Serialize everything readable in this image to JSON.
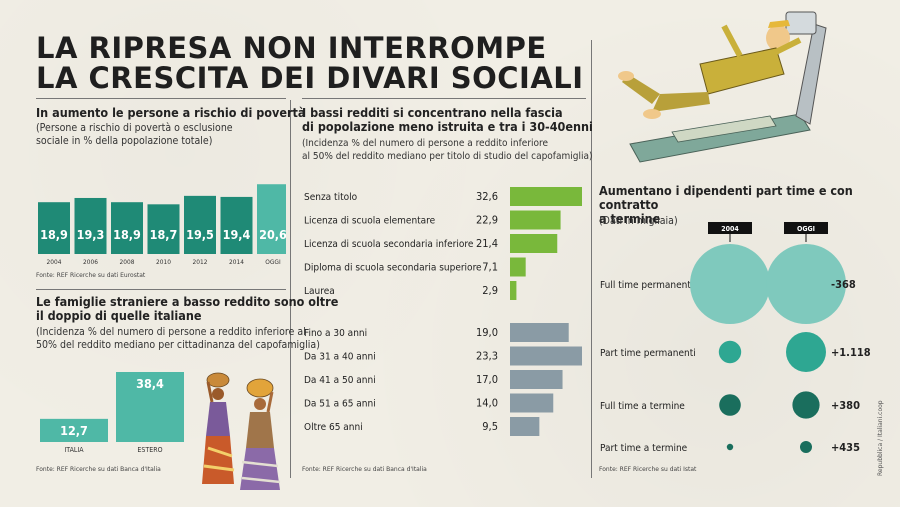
{
  "title": [
    "LA RIPRESA NON INTERROMPE",
    "LA CRESCITA DEI DIVARI SOCIALI"
  ],
  "poverty": {
    "title": "In aumento le persone a rischio di povertà",
    "subtitle": [
      "(Persone a rischio di povertà o esclusione",
      "sociale in % della popolazione totale)"
    ],
    "source": "Fonte: REF Ricerche su dati Eurostat"
  },
  "foreign": {
    "title": [
      "Le famiglie straniere a basso reddito sono oltre",
      "il doppio di quelle italiane"
    ],
    "subtitle": [
      "(Incidenza % del numero di persone a reddito inferiore al",
      "50% del reddito mediano per cittadinanza del capofamiglia)"
    ],
    "source": "Fonte: REF Ricerche su dati Banca d'Italia"
  },
  "lowincome": {
    "title": [
      "I bassi redditi si concentrano nella fascia",
      "di popolazione meno istruita e tra i 30-40enni"
    ],
    "subtitle": [
      "(Incidenza % del numero di persone a reddito inferiore",
      "al 50% del reddito mediano per titolo di studio del capofamiglia)"
    ],
    "source": "Fonte: REF Ricerche su dati Banca d'Italia"
  },
  "parttime": {
    "title": [
      "Aumentano i dipendenti part time e con contratto",
      "a termine"
    ],
    "subtitle": "(Dati in migliaia)",
    "source": "Fonte: REF Ricerche su dati Istat"
  },
  "credit": "Repubblica / Italiani.coop",
  "colors": {
    "teal_dark": "#1f8a76",
    "teal_light": "#4fb8a6",
    "green": "#79b83b",
    "grey_blue": "#8a9ba5",
    "bubble_light": "#7fc9bd",
    "bubble_mid": "#2ea792",
    "bubble_dark": "#1a6e5d"
  },
  "chart_data": [
    {
      "type": "bar",
      "categories": [
        "2004",
        "2006",
        "2008",
        "2010",
        "2012",
        "2014",
        "OGGI"
      ],
      "values": [
        18.9,
        19.3,
        18.9,
        18.7,
        19.5,
        19.4,
        20.6
      ],
      "value_labels": [
        "18,9",
        "19,3",
        "18,9",
        "18,7",
        "19,5",
        "19,4",
        "20,6"
      ],
      "title": "In aumento le persone a rischio di povertà"
    },
    {
      "type": "bar",
      "categories": [
        "ITALIA",
        "ESTERO"
      ],
      "values": [
        12.7,
        38.4
      ],
      "value_labels": [
        "12,7",
        "38,4"
      ],
      "title": "Le famiglie straniere a basso reddito sono oltre il doppio di quelle italiane"
    },
    {
      "type": "bar",
      "orientation": "horizontal",
      "categories": [
        "Senza titolo",
        "Licenza di scuola elementare",
        "Licenza di scuola secondaria inferiore",
        "Diploma di scuola secondaria superiore",
        "Laurea"
      ],
      "values": [
        32.6,
        22.9,
        21.4,
        7.1,
        2.9
      ],
      "value_labels": [
        "32,6",
        "22,9",
        "21,4",
        "7,1",
        "2,9"
      ]
    },
    {
      "type": "bar",
      "orientation": "horizontal",
      "categories": [
        "Fino a 30 anni",
        "Da 31 a 40 anni",
        "Da 41 a 50 anni",
        "Da 51 a 65 anni",
        "Oltre 65 anni"
      ],
      "values": [
        19.0,
        23.3,
        17.0,
        14.0,
        9.5
      ],
      "value_labels": [
        "19,0",
        "23,3",
        "17,0",
        "14,0",
        "9,5"
      ]
    },
    {
      "type": "bubble",
      "columns": [
        "2004",
        "OGGI"
      ],
      "rows": [
        {
          "label": "Full time permanenti",
          "size_2004": 1.0,
          "size_oggi": 1.0,
          "change": "-368"
        },
        {
          "label": "Part time permanenti",
          "size_2004": 0.28,
          "size_oggi": 0.5,
          "change": "+1.118"
        },
        {
          "label": "Full time a termine",
          "size_2004": 0.27,
          "size_oggi": 0.34,
          "change": "+380"
        },
        {
          "label": "Part time a termine",
          "size_2004": 0.08,
          "size_oggi": 0.15,
          "change": "+435"
        }
      ]
    }
  ]
}
